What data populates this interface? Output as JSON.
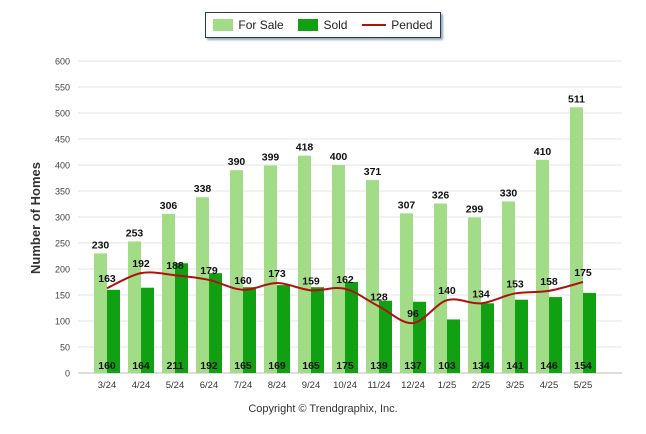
{
  "legend": {
    "for_sale_label": "For Sale",
    "sold_label": "Sold",
    "pended_label": "Pended"
  },
  "copyright": "Copyright © Trendgraphix, Inc.",
  "chart_data": {
    "type": "bar",
    "ylabel": "Number of Homes",
    "xlabel": "",
    "ylim": [
      0,
      600
    ],
    "yticks": [
      0,
      50,
      100,
      150,
      200,
      250,
      300,
      350,
      400,
      450,
      500,
      550,
      600
    ],
    "grid": true,
    "legend_position": "top-center",
    "categories": [
      "3/24",
      "4/24",
      "5/24",
      "6/24",
      "7/24",
      "8/24",
      "9/24",
      "10/24",
      "11/24",
      "12/24",
      "1/25",
      "2/25",
      "3/25",
      "4/25",
      "5/25"
    ],
    "series": [
      {
        "name": "For Sale",
        "kind": "bar",
        "color": "#a2dc86",
        "values": [
          230,
          253,
          306,
          338,
          390,
          399,
          418,
          400,
          371,
          307,
          326,
          299,
          330,
          410,
          511
        ]
      },
      {
        "name": "Sold",
        "kind": "bar",
        "color": "#11a011",
        "values": [
          160,
          164,
          211,
          192,
          165,
          169,
          165,
          175,
          139,
          137,
          103,
          134,
          141,
          146,
          154
        ]
      },
      {
        "name": "Pended",
        "kind": "line",
        "color": "#b01010",
        "values": [
          163,
          192,
          188,
          179,
          160,
          173,
          159,
          162,
          128,
          96,
          140,
          134,
          153,
          158,
          175
        ]
      }
    ]
  }
}
